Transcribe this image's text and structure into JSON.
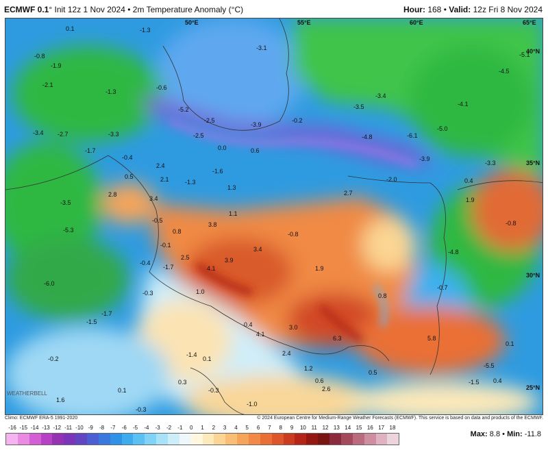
{
  "header": {
    "model": "ECMWF 0.1",
    "degree_symbol": "°",
    "init": "Init 12z 1 Nov 2024",
    "separator": "•",
    "field": "2m Temperature Anomaly (°C)",
    "hour_label": "Hour:",
    "hour_value": "168",
    "valid_label": "Valid:",
    "valid_value": "12z Fri 8 Nov 2024"
  },
  "map": {
    "longitude_labels": [
      "50°E",
      "55°E",
      "60°E",
      "65°E"
    ],
    "latitude_labels": [
      "40°N",
      "35°N",
      "30°N",
      "25°N"
    ],
    "values": [
      {
        "text": "-1.3"
      },
      {
        "text": "0.1"
      },
      {
        "text": "-0.8"
      },
      {
        "text": "-3.1"
      },
      {
        "text": "-1.9"
      },
      {
        "text": "-2.1"
      },
      {
        "text": "-1.3"
      },
      {
        "text": "-0.6"
      },
      {
        "text": "-4.1"
      },
      {
        "text": "-5.1"
      },
      {
        "text": "-4.5"
      },
      {
        "text": "-3.4"
      },
      {
        "text": "-5.2"
      },
      {
        "text": "-2.5"
      },
      {
        "text": "-3.9"
      },
      {
        "text": "-0.2"
      },
      {
        "text": "-3.5"
      },
      {
        "text": "-5.0"
      },
      {
        "text": "-6.1"
      },
      {
        "text": "-4.8"
      },
      {
        "text": "-3.4"
      },
      {
        "text": "-2.7"
      },
      {
        "text": "-3.3"
      },
      {
        "text": "-2.5"
      },
      {
        "text": "0.0"
      },
      {
        "text": "0.6"
      },
      {
        "text": "-3.9"
      },
      {
        "text": "-1.7"
      },
      {
        "text": "-0.4"
      },
      {
        "text": "2.4"
      },
      {
        "text": "-1.6"
      },
      {
        "text": "-3.3"
      },
      {
        "text": "0.4"
      },
      {
        "text": "0.5"
      },
      {
        "text": "2.1"
      },
      {
        "text": "-1.3"
      },
      {
        "text": "1.3"
      },
      {
        "text": "-2.0"
      },
      {
        "text": "2.7"
      },
      {
        "text": "1.9"
      },
      {
        "text": "-3.5"
      },
      {
        "text": "2.8"
      },
      {
        "text": "3.4"
      },
      {
        "text": "1.1"
      },
      {
        "text": "-0.8"
      },
      {
        "text": "-5.3"
      },
      {
        "text": "-0.5"
      },
      {
        "text": "3.8"
      },
      {
        "text": "0.8"
      },
      {
        "text": "-0.8"
      },
      {
        "text": "-0.1"
      },
      {
        "text": "3.4"
      },
      {
        "text": "-4.8"
      },
      {
        "text": "2.5"
      },
      {
        "text": "3.9"
      },
      {
        "text": "-0.4"
      },
      {
        "text": "-1.7"
      },
      {
        "text": "4.1"
      },
      {
        "text": "1.9"
      },
      {
        "text": "-6.0"
      },
      {
        "text": "-0.3"
      },
      {
        "text": "1.0"
      },
      {
        "text": "0.8"
      },
      {
        "text": "-0.7"
      },
      {
        "text": "-1.7"
      },
      {
        "text": "-1.5"
      },
      {
        "text": "0.4"
      },
      {
        "text": "3.0"
      },
      {
        "text": "4.1"
      },
      {
        "text": "6.3"
      },
      {
        "text": "5.8"
      },
      {
        "text": "0.1"
      },
      {
        "text": "-1.4"
      },
      {
        "text": "-0.2"
      },
      {
        "text": "0.1"
      },
      {
        "text": "2.4"
      },
      {
        "text": "1.2"
      },
      {
        "text": "0.5"
      },
      {
        "text": "-5.5"
      },
      {
        "text": "0.3"
      },
      {
        "text": "0.6"
      },
      {
        "text": "-1.5"
      },
      {
        "text": "0.4"
      },
      {
        "text": "0.1"
      },
      {
        "text": "2.6"
      },
      {
        "text": "-0.3"
      },
      {
        "text": "1.6"
      },
      {
        "text": "-1.0"
      },
      {
        "text": "-0.3"
      }
    ]
  },
  "watermark": "WEATHERBELL",
  "credits": {
    "left": "Climo: ECMWF ERA-5 1991-2020",
    "right": "© 2024 European Centre for Medium-Range Weather Forecasts (ECMWF). This service is based on data and products of the ECMWF."
  },
  "scale": {
    "labels": [
      "-16",
      "-15",
      "-14",
      "-13",
      "-12",
      "-11",
      "-10",
      "-9",
      "-8",
      "-7",
      "-6",
      "-5",
      "-4",
      "-3",
      "-2",
      "-1",
      "0",
      "1",
      "2",
      "3",
      "4",
      "5",
      "6",
      "7",
      "8",
      "9",
      "10",
      "11",
      "12",
      "13",
      "14",
      "15",
      "16",
      "17",
      "18"
    ],
    "colors": [
      "#f5b3f0",
      "#e98be3",
      "#d45ed3",
      "#b840c4",
      "#9532b3",
      "#7a35b8",
      "#6146c4",
      "#4b5ed2",
      "#3a78de",
      "#2f92e6",
      "#3cacef",
      "#5bc1f4",
      "#7fd3f7",
      "#a8e2f8",
      "#cdeef9",
      "#eef7fa",
      "#fff8df",
      "#fde9b9",
      "#fbd593",
      "#f9bd74",
      "#f6a45a",
      "#f28a45",
      "#ea6f35",
      "#dd5529",
      "#cb3b1f",
      "#b42518",
      "#951714",
      "#7a1412",
      "#8a2a3c",
      "#a34a5c",
      "#bb6b7f",
      "#cf8ea0",
      "#dfb2c1",
      "#edd3dd"
    ],
    "max_label": "Max:",
    "max_value": "8.8",
    "min_label": "Min:",
    "min_value": "-11.8"
  }
}
